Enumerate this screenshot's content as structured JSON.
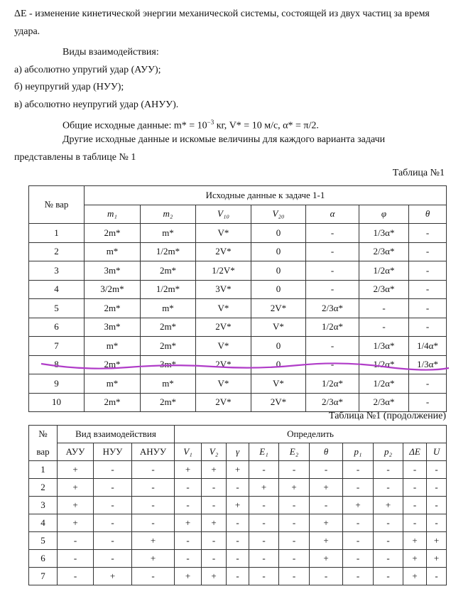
{
  "paragraphs": [
    "ΔE - изменение кинетической энергии механической системы, состоящей из двух частиц за время удара.",
    "Виды взаимодействия:",
    "а) абсолютно упругий удар (АУУ);",
    "б) неупругий удар (НУУ);",
    "в) абсолютно неупругий удар (АНУУ)."
  ],
  "common_data": [
    "Общие исходные данные: m* = 10",
    "−3",
    " кг, V* = 10 м/с, α* = π/2."
  ],
  "intro": "Другие исходные данные и искомые величины для каждого варианта задачи представлены в таблице № 1",
  "table1": {
    "caption": "Таблица №1",
    "row_header": "№ вар",
    "group_header": "Исходные данные к задаче 1-1",
    "columns": [
      "m₁",
      "m₂",
      "V₁₀",
      "V₂₀",
      "α",
      "φ",
      "θ"
    ],
    "rows": [
      [
        "1",
        "2m*",
        "m*",
        "V*",
        "0",
        "-",
        "1/3α*",
        "-"
      ],
      [
        "2",
        "m*",
        "1/2m*",
        "2V*",
        "0",
        "-",
        "2/3α*",
        "-"
      ],
      [
        "3",
        "3m*",
        "2m*",
        "1/2V*",
        "0",
        "-",
        "1/2α*",
        "-"
      ],
      [
        "4",
        "3/2m*",
        "1/2m*",
        "3V*",
        "0",
        "-",
        "2/3α*",
        "-"
      ],
      [
        "5",
        "2m*",
        "m*",
        "V*",
        "2V*",
        "2/3α*",
        "-",
        "-"
      ],
      [
        "6",
        "3m*",
        "2m*",
        "2V*",
        "V*",
        "1/2α*",
        "-",
        "-"
      ],
      [
        "7",
        "m*",
        "2m*",
        "V*",
        "0",
        "-",
        "1/3α*",
        "1/4α*"
      ],
      [
        "8",
        "2m*",
        "3m*",
        "2V*",
        "0",
        "-",
        "1/2α*",
        "1/3α*"
      ],
      [
        "9",
        "m*",
        "m*",
        "V*",
        "V*",
        "1/2α*",
        "1/2α*",
        "-"
      ],
      [
        "10",
        "2m*",
        "2m*",
        "2V*",
        "2V*",
        "2/3α*",
        "2/3α*",
        "-"
      ]
    ]
  },
  "table2": {
    "caption": "Таблица №1 (продолжение)",
    "row_header": [
      "№",
      "вар"
    ],
    "group_headers": [
      "Вид взаимодействия",
      "Определить"
    ],
    "columns": [
      "АУУ",
      "НУУ",
      "АНУУ",
      "V₁",
      "V₂",
      "γ",
      "E₁",
      "E₂",
      "θ",
      "p₁",
      "p₂",
      "ΔE",
      "U"
    ],
    "rows": [
      [
        "1",
        "+",
        "-",
        "-",
        "+",
        "+",
        "+",
        "-",
        "-",
        "-",
        "-",
        "-",
        "-",
        "-"
      ],
      [
        "2",
        "+",
        "-",
        "-",
        "-",
        "-",
        "-",
        "+",
        "+",
        "+",
        "-",
        "-",
        "-",
        "-"
      ],
      [
        "3",
        "+",
        "-",
        "-",
        "-",
        "-",
        "+",
        "-",
        "-",
        "-",
        "+",
        "+",
        "-",
        "-"
      ],
      [
        "4",
        "+",
        "-",
        "-",
        "+",
        "+",
        "-",
        "-",
        "-",
        "+",
        "-",
        "-",
        "-",
        "-"
      ],
      [
        "5",
        "-",
        "-",
        "+",
        "-",
        "-",
        "-",
        "-",
        "-",
        "+",
        "-",
        "-",
        "+",
        "+"
      ],
      [
        "6",
        "-",
        "-",
        "+",
        "-",
        "-",
        "-",
        "-",
        "-",
        "+",
        "-",
        "-",
        "+",
        "+"
      ],
      [
        "7",
        "-",
        "+",
        "-",
        "+",
        "+",
        "-",
        "-",
        "-",
        "-",
        "-",
        "-",
        "+",
        "-"
      ]
    ]
  }
}
